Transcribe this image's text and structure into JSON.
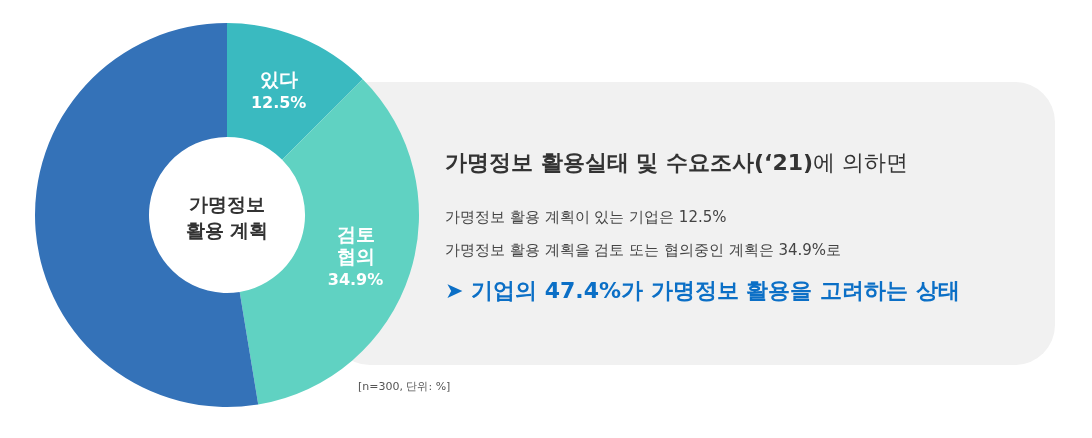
{
  "chart_data": {
    "type": "donut",
    "title": "가명정보 활용 계획",
    "categories": [
      "있다",
      "검토 협의",
      null
    ],
    "values": [
      12.5,
      34.9,
      52.6
    ],
    "value_labels": [
      "12.5%",
      "34.9%",
      null
    ],
    "colors": [
      "#3abac0",
      "#60d2c2",
      "#3472b8"
    ],
    "annotations": [
      "**가명정보 활용실태 및 수요조사(‘21)**에 의하면",
      "가명정보 활용 계획이 있는 기업은 12.5%",
      "가명정보 활용 계획을 검토 또는 협의중인 계획은 34.9%로",
      "➤ 기업의 47.4%가 가명정보 활용을 고려하는 상태",
      "[n=300, 단위: %]"
    ]
  }
}
